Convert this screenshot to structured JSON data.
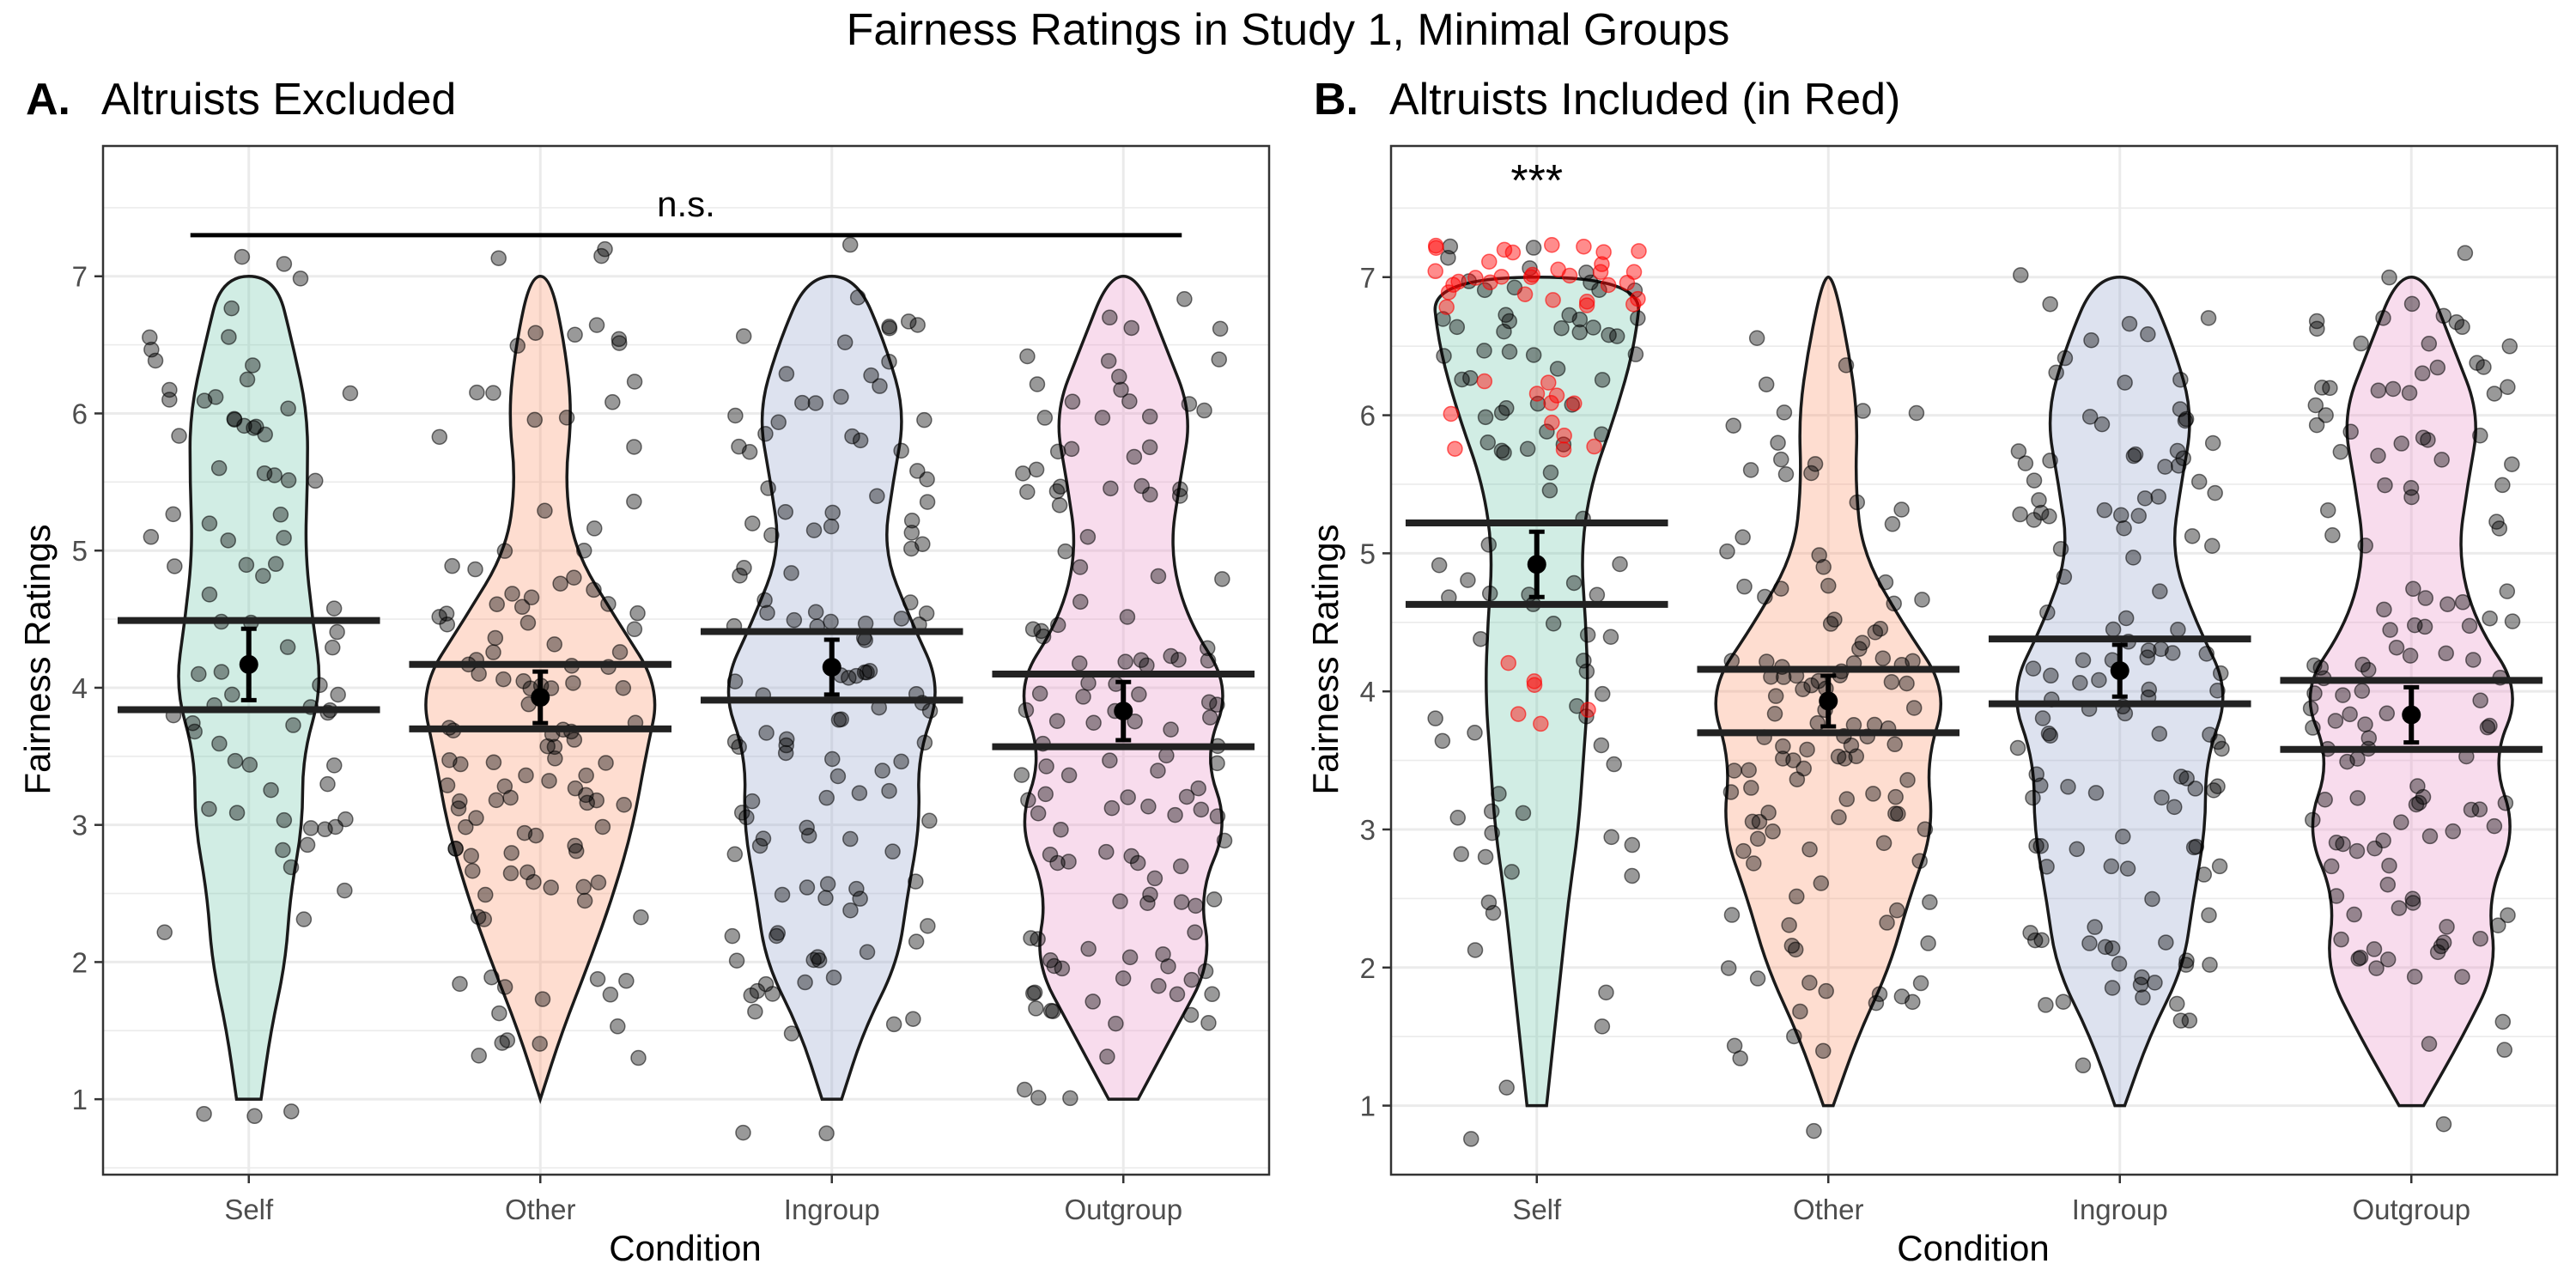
{
  "figure": {
    "title": "Fairness Ratings in Study 1, Minimal Groups"
  },
  "colors": {
    "self": "#66c2a5",
    "other": "#fc8d62",
    "ingroup": "#8da0cb",
    "outgroup": "#e78ac3",
    "altruist": "#ff0000",
    "points": "#000000",
    "outline": "#1a1a1a",
    "grid": "#ebebeb"
  },
  "chart_data": [
    {
      "type": "violin",
      "panel_tag": "A.",
      "title": "Altruists Excluded",
      "xlabel": "Condition",
      "ylabel": "Fairness Ratings",
      "categories": [
        "Self",
        "Other",
        "Ingroup",
        "Outgroup"
      ],
      "ylim": [
        0.45,
        7.95
      ],
      "yticks": [
        1,
        2,
        3,
        4,
        5,
        6,
        7
      ],
      "grid": true,
      "means": [
        4.17,
        3.93,
        4.15,
        3.83
      ],
      "ci": [
        [
          3.84,
          4.49
        ],
        [
          3.7,
          4.17
        ],
        [
          3.91,
          4.41
        ],
        [
          3.57,
          4.1
        ]
      ],
      "violin_widths": {
        "Self": [
          [
            1.0,
            0.1
          ],
          [
            1.5,
            0.18
          ],
          [
            2.0,
            0.3
          ],
          [
            2.5,
            0.34
          ],
          [
            3.0,
            0.44
          ],
          [
            3.5,
            0.44
          ],
          [
            4.0,
            0.6
          ],
          [
            4.5,
            0.52
          ],
          [
            5.0,
            0.46
          ],
          [
            5.5,
            0.48
          ],
          [
            6.0,
            0.48
          ],
          [
            6.5,
            0.36
          ],
          [
            7.0,
            0.22
          ]
        ],
        "Other": [
          [
            1.0,
            0.0
          ],
          [
            1.5,
            0.18
          ],
          [
            2.0,
            0.4
          ],
          [
            2.5,
            0.6
          ],
          [
            3.0,
            0.76
          ],
          [
            3.5,
            0.86
          ],
          [
            4.0,
            0.98
          ],
          [
            4.5,
            0.62
          ],
          [
            5.0,
            0.28
          ],
          [
            5.5,
            0.2
          ],
          [
            6.0,
            0.26
          ],
          [
            6.5,
            0.2
          ],
          [
            7.0,
            0.08
          ]
        ],
        "Ingroup": [
          [
            1.0,
            0.08
          ],
          [
            1.5,
            0.26
          ],
          [
            2.0,
            0.54
          ],
          [
            2.5,
            0.62
          ],
          [
            3.0,
            0.72
          ],
          [
            3.5,
            0.7
          ],
          [
            4.0,
            0.9
          ],
          [
            4.5,
            0.64
          ],
          [
            5.0,
            0.42
          ],
          [
            5.5,
            0.5
          ],
          [
            6.0,
            0.6
          ],
          [
            6.5,
            0.44
          ],
          [
            7.0,
            0.2
          ]
        ],
        "Outgroup": [
          [
            1.0,
            0.12
          ],
          [
            1.5,
            0.42
          ],
          [
            2.0,
            0.72
          ],
          [
            2.5,
            0.62
          ],
          [
            3.0,
            0.86
          ],
          [
            3.5,
            0.66
          ],
          [
            4.0,
            0.88
          ],
          [
            4.5,
            0.52
          ],
          [
            5.0,
            0.38
          ],
          [
            5.5,
            0.46
          ],
          [
            6.0,
            0.56
          ],
          [
            6.5,
            0.34
          ],
          [
            7.0,
            0.12
          ]
        ]
      },
      "significance": {
        "label": "n.s.",
        "from": "Self",
        "to": "Outgroup",
        "y": 7.3
      },
      "n_points": {
        "Self": 80,
        "Other": 120,
        "Ingroup": 125,
        "Outgroup": 130
      }
    },
    {
      "type": "violin",
      "panel_tag": "B.",
      "title": "Altruists Included (in Red)",
      "xlabel": "Condition",
      "ylabel": "Fairness Ratings",
      "categories": [
        "Self",
        "Other",
        "Ingroup",
        "Outgroup"
      ],
      "ylim": [
        0.5,
        7.95
      ],
      "yticks": [
        1,
        2,
        3,
        4,
        5,
        6,
        7
      ],
      "grid": true,
      "means": [
        4.92,
        3.93,
        4.15,
        3.83
      ],
      "ci": [
        [
          4.63,
          5.22
        ],
        [
          3.7,
          4.16
        ],
        [
          3.91,
          4.38
        ],
        [
          3.58,
          4.08
        ]
      ],
      "violin_widths": {
        "Self": [
          [
            1.0,
            0.08
          ],
          [
            1.5,
            0.14
          ],
          [
            2.0,
            0.2
          ],
          [
            2.5,
            0.26
          ],
          [
            3.0,
            0.34
          ],
          [
            3.5,
            0.38
          ],
          [
            4.0,
            0.42
          ],
          [
            4.5,
            0.4
          ],
          [
            5.0,
            0.36
          ],
          [
            5.5,
            0.44
          ],
          [
            6.0,
            0.64
          ],
          [
            6.5,
            0.8
          ],
          [
            7.0,
            0.86
          ]
        ],
        "Other": [
          [
            1.0,
            0.04
          ],
          [
            1.5,
            0.24
          ],
          [
            2.0,
            0.5
          ],
          [
            2.5,
            0.66
          ],
          [
            3.0,
            0.86
          ],
          [
            3.5,
            0.8
          ],
          [
            4.0,
            0.98
          ],
          [
            4.5,
            0.6
          ],
          [
            5.0,
            0.28
          ],
          [
            5.5,
            0.22
          ],
          [
            6.0,
            0.24
          ],
          [
            6.5,
            0.16
          ],
          [
            7.0,
            0.04
          ]
        ],
        "Ingroup": [
          [
            1.0,
            0.04
          ],
          [
            1.5,
            0.24
          ],
          [
            2.0,
            0.52
          ],
          [
            2.5,
            0.6
          ],
          [
            3.0,
            0.7
          ],
          [
            3.5,
            0.7
          ],
          [
            4.0,
            0.9
          ],
          [
            4.5,
            0.62
          ],
          [
            5.0,
            0.42
          ],
          [
            5.5,
            0.5
          ],
          [
            6.0,
            0.6
          ],
          [
            6.5,
            0.44
          ],
          [
            7.0,
            0.2
          ]
        ],
        "Outgroup": [
          [
            1.0,
            0.1
          ],
          [
            1.5,
            0.42
          ],
          [
            2.0,
            0.7
          ],
          [
            2.5,
            0.62
          ],
          [
            3.0,
            0.86
          ],
          [
            3.5,
            0.66
          ],
          [
            4.0,
            0.9
          ],
          [
            4.5,
            0.52
          ],
          [
            5.0,
            0.38
          ],
          [
            5.5,
            0.46
          ],
          [
            6.0,
            0.56
          ],
          [
            6.5,
            0.34
          ],
          [
            7.0,
            0.12
          ]
        ]
      },
      "significance": {
        "label": "***",
        "over": "Self",
        "y": 7.7
      },
      "n_points": {
        "Self": 90,
        "Other": 120,
        "Ingroup": 125,
        "Outgroup": 130
      },
      "altruists": {
        "condition": "Self",
        "count": 50,
        "values": [
          4,
          6,
          7
        ]
      }
    }
  ]
}
